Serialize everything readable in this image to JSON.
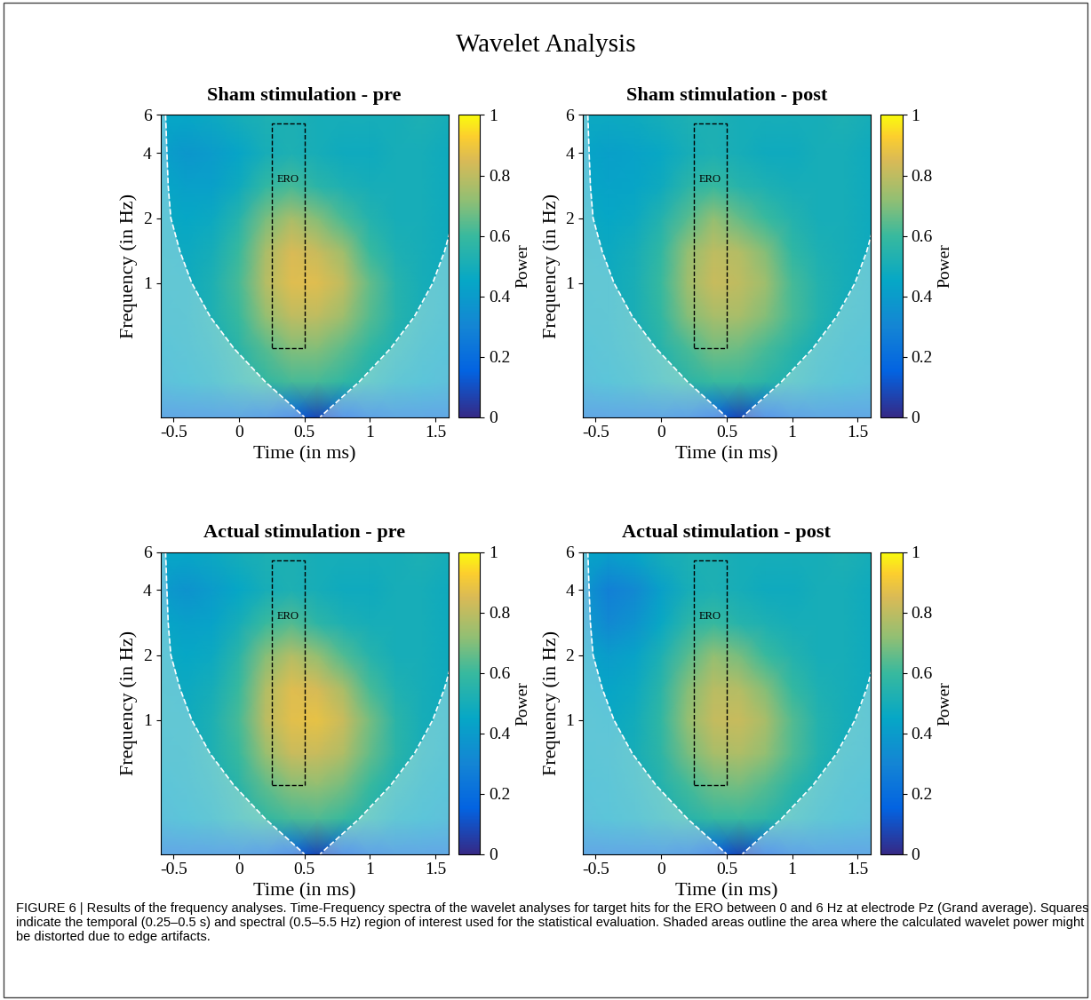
{
  "title": "Wavelet Analysis",
  "caption": "FIGURE 6 | Results of the frequency analyses. Time-Frequency spectra of the wavelet analyses for target hits for the ERO between 0 and 6 Hz at electrode Pz (Grand average). Squares indicate the temporal (0.25–0.5 s) and spectral (0.5–5.5 Hz) region of interest used for the statistical evaluation. Shaded areas outline the area where the calculated wavelet power might be distorted due to edge artifacts.",
  "chart_data": [
    {
      "type": "heatmap",
      "title": "Sham stimulation - pre",
      "xlabel": "Time (in ms)",
      "ylabel": "Frequency (in Hz)",
      "log": "y",
      "xlim": [
        -0.6,
        1.6
      ],
      "ylim": [
        0.24,
        6
      ],
      "xticks": [
        -0.5,
        0,
        0.5,
        1,
        1.5
      ],
      "yticks": [
        1,
        2,
        4,
        6
      ],
      "x": [
        -0.6,
        -0.4,
        -0.2,
        0,
        0.2,
        0.4,
        0.6,
        0.8,
        1.0,
        1.2,
        1.4,
        1.6
      ],
      "y": [
        0.24,
        0.35,
        0.5,
        0.7,
        1,
        1.4,
        2,
        2.8,
        4,
        6
      ],
      "cells": [
        [
          0.25,
          0.25,
          0.25,
          0.25,
          0.22,
          0.15,
          0.08,
          0.15,
          0.22,
          0.25,
          0.25,
          0.25
        ],
        [
          0.42,
          0.45,
          0.48,
          0.53,
          0.58,
          0.62,
          0.62,
          0.58,
          0.53,
          0.48,
          0.45,
          0.42
        ],
        [
          0.45,
          0.47,
          0.5,
          0.56,
          0.64,
          0.7,
          0.7,
          0.65,
          0.58,
          0.52,
          0.48,
          0.45
        ],
        [
          0.47,
          0.48,
          0.52,
          0.6,
          0.72,
          0.8,
          0.8,
          0.74,
          0.64,
          0.55,
          0.5,
          0.47
        ],
        [
          0.48,
          0.48,
          0.52,
          0.62,
          0.78,
          0.86,
          0.86,
          0.8,
          0.66,
          0.55,
          0.5,
          0.48
        ],
        [
          0.48,
          0.47,
          0.5,
          0.6,
          0.76,
          0.85,
          0.82,
          0.74,
          0.6,
          0.52,
          0.5,
          0.48
        ],
        [
          0.47,
          0.45,
          0.47,
          0.55,
          0.68,
          0.76,
          0.7,
          0.62,
          0.54,
          0.5,
          0.5,
          0.48
        ],
        [
          0.45,
          0.42,
          0.42,
          0.48,
          0.58,
          0.62,
          0.56,
          0.52,
          0.5,
          0.5,
          0.5,
          0.48
        ],
        [
          0.42,
          0.38,
          0.4,
          0.44,
          0.5,
          0.52,
          0.5,
          0.48,
          0.48,
          0.5,
          0.5,
          0.48
        ],
        [
          0.45,
          0.45,
          0.47,
          0.5,
          0.52,
          0.52,
          0.5,
          0.5,
          0.5,
          0.5,
          0.52,
          0.5
        ]
      ],
      "colorbar": {
        "label": "Power",
        "range": [
          0,
          1
        ],
        "ticks": [
          0,
          0.2,
          0.4,
          0.6,
          0.8,
          1
        ]
      },
      "roi": {
        "label": "ERO",
        "time": [
          0.25,
          0.5
        ],
        "freq": [
          0.5,
          5.5
        ]
      },
      "coi": {
        "freq": [
          6,
          4,
          2.8,
          2,
          1.4,
          1,
          0.7,
          0.5,
          0.35,
          0.24
        ],
        "time_left": [
          -0.56,
          -0.55,
          -0.54,
          -0.52,
          -0.45,
          -0.36,
          -0.22,
          -0.04,
          0.2,
          0.5
        ],
        "time_right": [
          1.68,
          1.67,
          1.66,
          1.64,
          1.57,
          1.48,
          1.34,
          1.16,
          0.92,
          0.62
        ]
      }
    },
    {
      "type": "heatmap",
      "title": "Sham stimulation - post",
      "xlabel": "Time (in ms)",
      "ylabel": "Frequency (in Hz)",
      "log": "y",
      "xlim": [
        -0.6,
        1.6
      ],
      "ylim": [
        0.24,
        6
      ],
      "xticks": [
        -0.5,
        0,
        0.5,
        1,
        1.5
      ],
      "yticks": [
        1,
        2,
        4,
        6
      ],
      "x": [
        -0.6,
        -0.4,
        -0.2,
        0,
        0.2,
        0.4,
        0.6,
        0.8,
        1.0,
        1.2,
        1.4,
        1.6
      ],
      "y": [
        0.24,
        0.35,
        0.5,
        0.7,
        1,
        1.4,
        2,
        2.8,
        4,
        6
      ],
      "cells": [
        [
          0.25,
          0.25,
          0.25,
          0.25,
          0.22,
          0.15,
          0.08,
          0.15,
          0.22,
          0.25,
          0.25,
          0.25
        ],
        [
          0.42,
          0.45,
          0.48,
          0.52,
          0.56,
          0.6,
          0.6,
          0.56,
          0.52,
          0.48,
          0.45,
          0.42
        ],
        [
          0.45,
          0.47,
          0.5,
          0.55,
          0.62,
          0.68,
          0.67,
          0.62,
          0.56,
          0.5,
          0.47,
          0.45
        ],
        [
          0.47,
          0.48,
          0.51,
          0.58,
          0.7,
          0.76,
          0.76,
          0.7,
          0.62,
          0.54,
          0.49,
          0.47
        ],
        [
          0.48,
          0.48,
          0.51,
          0.6,
          0.74,
          0.82,
          0.8,
          0.74,
          0.62,
          0.54,
          0.5,
          0.48
        ],
        [
          0.48,
          0.47,
          0.5,
          0.58,
          0.72,
          0.8,
          0.78,
          0.7,
          0.58,
          0.52,
          0.5,
          0.48
        ],
        [
          0.47,
          0.45,
          0.47,
          0.54,
          0.64,
          0.72,
          0.66,
          0.6,
          0.54,
          0.5,
          0.5,
          0.48
        ],
        [
          0.45,
          0.43,
          0.44,
          0.48,
          0.56,
          0.6,
          0.55,
          0.52,
          0.5,
          0.5,
          0.5,
          0.48
        ],
        [
          0.44,
          0.42,
          0.43,
          0.46,
          0.5,
          0.52,
          0.5,
          0.48,
          0.48,
          0.5,
          0.5,
          0.48
        ],
        [
          0.47,
          0.47,
          0.48,
          0.5,
          0.52,
          0.52,
          0.5,
          0.5,
          0.5,
          0.5,
          0.52,
          0.5
        ]
      ],
      "colorbar": {
        "label": "Power",
        "range": [
          0,
          1
        ],
        "ticks": [
          0,
          0.2,
          0.4,
          0.6,
          0.8,
          1
        ]
      },
      "roi": {
        "label": "ERO",
        "time": [
          0.25,
          0.5
        ],
        "freq": [
          0.5,
          5.5
        ]
      },
      "coi": {
        "freq": [
          6,
          4,
          2.8,
          2,
          1.4,
          1,
          0.7,
          0.5,
          0.35,
          0.24
        ],
        "time_left": [
          -0.56,
          -0.55,
          -0.54,
          -0.52,
          -0.45,
          -0.36,
          -0.22,
          -0.04,
          0.2,
          0.5
        ],
        "time_right": [
          1.68,
          1.67,
          1.66,
          1.64,
          1.57,
          1.48,
          1.34,
          1.16,
          0.92,
          0.62
        ]
      }
    },
    {
      "type": "heatmap",
      "title": "Actual stimulation - pre",
      "xlabel": "Time (in ms)",
      "ylabel": "Frequency (in Hz)",
      "log": "y",
      "xlim": [
        -0.6,
        1.6
      ],
      "ylim": [
        0.24,
        6
      ],
      "xticks": [
        -0.5,
        0,
        0.5,
        1,
        1.5
      ],
      "yticks": [
        1,
        2,
        4,
        6
      ],
      "x": [
        -0.6,
        -0.4,
        -0.2,
        0,
        0.2,
        0.4,
        0.6,
        0.8,
        1.0,
        1.2,
        1.4,
        1.6
      ],
      "y": [
        0.24,
        0.35,
        0.5,
        0.7,
        1,
        1.4,
        2,
        2.8,
        4,
        6
      ],
      "cells": [
        [
          0.25,
          0.25,
          0.25,
          0.25,
          0.22,
          0.15,
          0.08,
          0.15,
          0.22,
          0.25,
          0.25,
          0.25
        ],
        [
          0.42,
          0.45,
          0.48,
          0.53,
          0.58,
          0.62,
          0.63,
          0.6,
          0.54,
          0.48,
          0.45,
          0.42
        ],
        [
          0.45,
          0.47,
          0.5,
          0.56,
          0.65,
          0.71,
          0.72,
          0.68,
          0.6,
          0.52,
          0.48,
          0.45
        ],
        [
          0.47,
          0.48,
          0.52,
          0.6,
          0.73,
          0.82,
          0.82,
          0.77,
          0.66,
          0.56,
          0.5,
          0.47
        ],
        [
          0.48,
          0.48,
          0.52,
          0.62,
          0.79,
          0.87,
          0.88,
          0.82,
          0.68,
          0.56,
          0.5,
          0.48
        ],
        [
          0.48,
          0.47,
          0.5,
          0.6,
          0.77,
          0.86,
          0.84,
          0.76,
          0.62,
          0.53,
          0.5,
          0.48
        ],
        [
          0.47,
          0.45,
          0.47,
          0.56,
          0.7,
          0.78,
          0.72,
          0.63,
          0.55,
          0.5,
          0.5,
          0.48
        ],
        [
          0.45,
          0.42,
          0.43,
          0.5,
          0.6,
          0.64,
          0.57,
          0.52,
          0.5,
          0.5,
          0.5,
          0.48
        ],
        [
          0.4,
          0.36,
          0.4,
          0.45,
          0.5,
          0.52,
          0.5,
          0.48,
          0.48,
          0.5,
          0.5,
          0.48
        ],
        [
          0.45,
          0.45,
          0.47,
          0.5,
          0.52,
          0.52,
          0.5,
          0.5,
          0.5,
          0.5,
          0.52,
          0.5
        ]
      ],
      "colorbar": {
        "label": "Power",
        "range": [
          0,
          1
        ],
        "ticks": [
          0,
          0.2,
          0.4,
          0.6,
          0.8,
          1
        ]
      },
      "roi": {
        "label": "ERO",
        "time": [
          0.25,
          0.5
        ],
        "freq": [
          0.5,
          5.5
        ]
      },
      "coi": {
        "freq": [
          6,
          4,
          2.8,
          2,
          1.4,
          1,
          0.7,
          0.5,
          0.35,
          0.24
        ],
        "time_left": [
          -0.56,
          -0.55,
          -0.54,
          -0.52,
          -0.45,
          -0.36,
          -0.22,
          -0.04,
          0.2,
          0.5
        ],
        "time_right": [
          1.68,
          1.67,
          1.66,
          1.64,
          1.57,
          1.48,
          1.34,
          1.16,
          0.92,
          0.62
        ]
      }
    },
    {
      "type": "heatmap",
      "title": "Actual stimulation - post",
      "xlabel": "Time (in ms)",
      "ylabel": "Frequency (in Hz)",
      "log": "y",
      "xlim": [
        -0.6,
        1.6
      ],
      "ylim": [
        0.24,
        6
      ],
      "xticks": [
        -0.5,
        0,
        0.5,
        1,
        1.5
      ],
      "yticks": [
        1,
        2,
        4,
        6
      ],
      "x": [
        -0.6,
        -0.4,
        -0.2,
        0,
        0.2,
        0.4,
        0.6,
        0.8,
        1.0,
        1.2,
        1.4,
        1.6
      ],
      "y": [
        0.24,
        0.35,
        0.5,
        0.7,
        1,
        1.4,
        2,
        2.8,
        4,
        6
      ],
      "cells": [
        [
          0.25,
          0.25,
          0.25,
          0.25,
          0.22,
          0.15,
          0.08,
          0.15,
          0.22,
          0.25,
          0.25,
          0.25
        ],
        [
          0.42,
          0.45,
          0.47,
          0.51,
          0.55,
          0.59,
          0.6,
          0.57,
          0.52,
          0.48,
          0.45,
          0.42
        ],
        [
          0.45,
          0.46,
          0.49,
          0.54,
          0.61,
          0.67,
          0.68,
          0.64,
          0.57,
          0.51,
          0.47,
          0.45
        ],
        [
          0.46,
          0.47,
          0.5,
          0.57,
          0.68,
          0.76,
          0.77,
          0.72,
          0.63,
          0.54,
          0.49,
          0.47
        ],
        [
          0.47,
          0.46,
          0.49,
          0.58,
          0.72,
          0.81,
          0.82,
          0.76,
          0.64,
          0.54,
          0.5,
          0.48
        ],
        [
          0.46,
          0.44,
          0.47,
          0.56,
          0.7,
          0.79,
          0.78,
          0.7,
          0.59,
          0.52,
          0.5,
          0.48
        ],
        [
          0.44,
          0.4,
          0.43,
          0.52,
          0.64,
          0.72,
          0.68,
          0.6,
          0.54,
          0.5,
          0.5,
          0.48
        ],
        [
          0.4,
          0.32,
          0.36,
          0.46,
          0.56,
          0.6,
          0.55,
          0.52,
          0.5,
          0.5,
          0.5,
          0.48
        ],
        [
          0.38,
          0.28,
          0.32,
          0.42,
          0.5,
          0.52,
          0.5,
          0.48,
          0.48,
          0.5,
          0.5,
          0.48
        ],
        [
          0.45,
          0.42,
          0.45,
          0.5,
          0.52,
          0.52,
          0.5,
          0.5,
          0.5,
          0.5,
          0.52,
          0.5
        ]
      ],
      "colorbar": {
        "label": "Power",
        "range": [
          0,
          1
        ],
        "ticks": [
          0,
          0.2,
          0.4,
          0.6,
          0.8,
          1
        ]
      },
      "roi": {
        "label": "ERO",
        "time": [
          0.25,
          0.5
        ],
        "freq": [
          0.5,
          5.5
        ]
      },
      "coi": {
        "freq": [
          6,
          4,
          2.8,
          2,
          1.4,
          1,
          0.7,
          0.5,
          0.35,
          0.24
        ],
        "time_left": [
          -0.56,
          -0.55,
          -0.54,
          -0.52,
          -0.45,
          -0.36,
          -0.22,
          -0.04,
          0.2,
          0.5
        ],
        "time_right": [
          1.68,
          1.67,
          1.66,
          1.64,
          1.57,
          1.48,
          1.34,
          1.16,
          0.92,
          0.62
        ]
      }
    }
  ]
}
